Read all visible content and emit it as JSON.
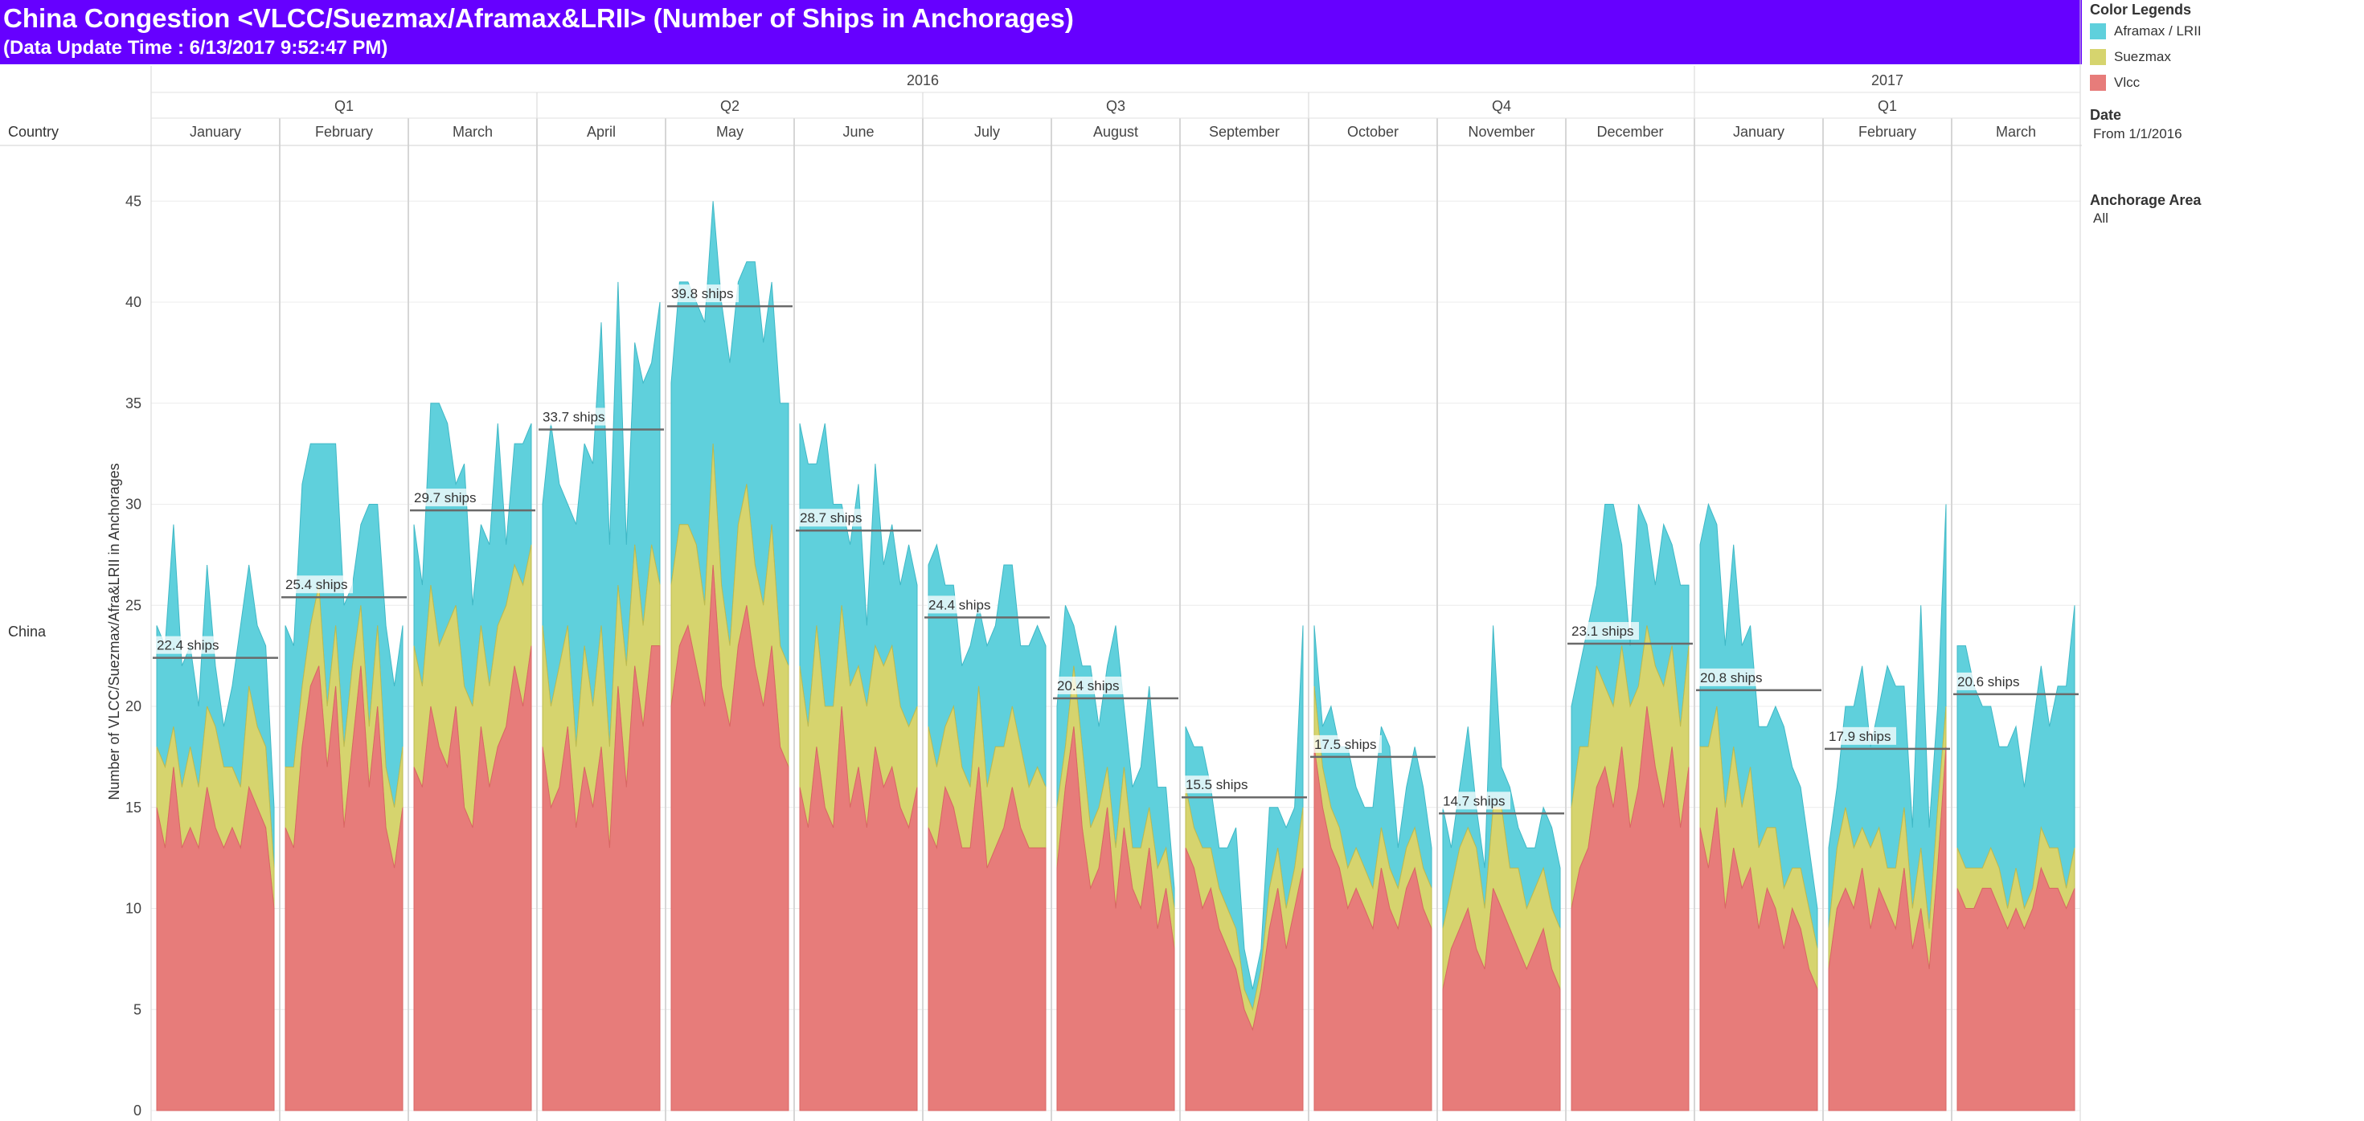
{
  "header": {
    "title": "China Congestion <VLCC/Suezmax/Aframax&LRII> (Number of Ships in Anchorages)",
    "subtitle": "(Data Update Time : 6/13/2017 9:52:47 PM)"
  },
  "legend": {
    "title": "Color Legends",
    "items": [
      {
        "label": "Aframax / LRII",
        "color": "#5fd0dc"
      },
      {
        "label": "Suezmax",
        "color": "#d6d46e"
      },
      {
        "label": "Vlcc",
        "color": "#e77c7a"
      }
    ]
  },
  "filters": {
    "date_label": "Date",
    "date_value": "From 1/1/2016",
    "area_label": "Anchorage Area",
    "area_value": "All"
  },
  "chart_data": {
    "type": "area",
    "stacked": true,
    "title": "China Congestion <VLCC/Suezmax/Aframax&LRII> (Number of Ships in Anchorages)",
    "row_header": "Country",
    "row_label": "China",
    "ylabel": "Number of VLCC/Suezmax/Afra&LRII in Anchorages",
    "ylim": [
      0,
      47
    ],
    "yticks": [
      0,
      5,
      10,
      15,
      20,
      25,
      30,
      35,
      40,
      45
    ],
    "grid": true,
    "years": [
      {
        "label": "2016",
        "span": 12
      },
      {
        "label": "2017",
        "span": 3
      }
    ],
    "quarters": [
      {
        "label": "Q1",
        "span": 3
      },
      {
        "label": "Q2",
        "span": 3
      },
      {
        "label": "Q3",
        "span": 3
      },
      {
        "label": "Q4",
        "span": 3
      },
      {
        "label": "Q1",
        "span": 3
      }
    ],
    "series_order": [
      "Vlcc",
      "Suezmax",
      "Aframax / LRII"
    ],
    "months": [
      {
        "label": "January",
        "avg_label": "22.4 ships",
        "avg": 22.4,
        "vlcc": [
          15,
          13,
          17,
          13,
          14,
          13,
          16,
          14,
          13,
          14,
          13,
          16,
          15,
          14,
          10
        ],
        "suezmax": [
          3,
          4,
          2,
          3,
          4,
          3,
          4,
          5,
          4,
          3,
          3,
          5,
          4,
          4,
          2
        ],
        "aframax": [
          6,
          6,
          10,
          6,
          5,
          4,
          7,
          3,
          2,
          4,
          8,
          6,
          5,
          5,
          3
        ]
      },
      {
        "label": "February",
        "avg_label": "25.4 ships",
        "avg": 25.4,
        "vlcc": [
          14,
          13,
          18,
          21,
          22,
          17,
          21,
          14,
          18,
          22,
          16,
          20,
          14,
          12,
          15
        ],
        "suezmax": [
          3,
          4,
          3,
          3,
          4,
          3,
          3,
          4,
          4,
          3,
          3,
          4,
          3,
          3,
          3
        ],
        "aframax": [
          7,
          6,
          10,
          9,
          7,
          13,
          9,
          7,
          4,
          4,
          11,
          6,
          7,
          6,
          6
        ]
      },
      {
        "label": "March",
        "avg_label": "29.7 ships",
        "avg": 29.7,
        "vlcc": [
          17,
          16,
          20,
          18,
          17,
          20,
          15,
          14,
          19,
          16,
          18,
          19,
          22,
          20,
          23
        ],
        "suezmax": [
          6,
          5,
          6,
          5,
          7,
          5,
          6,
          6,
          5,
          5,
          6,
          6,
          5,
          6,
          5
        ],
        "aframax": [
          6,
          5,
          9,
          12,
          10,
          6,
          11,
          5,
          5,
          7,
          10,
          3,
          6,
          7,
          6
        ]
      },
      {
        "label": "April",
        "avg_label": "33.7 ships",
        "avg": 33.7,
        "vlcc": [
          18,
          15,
          16,
          19,
          14,
          17,
          15,
          18,
          13,
          21,
          16,
          22,
          19,
          23,
          23
        ],
        "suezmax": [
          6,
          5,
          6,
          5,
          4,
          6,
          5,
          6,
          5,
          5,
          6,
          6,
          5,
          5,
          3
        ],
        "aframax": [
          6,
          14,
          9,
          6,
          11,
          10,
          12,
          15,
          10,
          15,
          6,
          10,
          12,
          9,
          14
        ]
      },
      {
        "label": "May",
        "avg_label": "39.8 ships",
        "avg": 39.8,
        "vlcc": [
          20,
          23,
          24,
          22,
          20,
          27,
          21,
          19,
          23,
          25,
          22,
          20,
          23,
          18,
          17
        ],
        "suezmax": [
          6,
          6,
          5,
          6,
          5,
          6,
          5,
          4,
          6,
          6,
          5,
          5,
          6,
          5,
          5
        ],
        "aframax": [
          10,
          12,
          12,
          12,
          14,
          12,
          14,
          14,
          12,
          11,
          15,
          13,
          12,
          12,
          13
        ]
      },
      {
        "label": "June",
        "avg_label": "28.7 ships",
        "avg": 28.7,
        "vlcc": [
          16,
          14,
          18,
          15,
          14,
          20,
          15,
          17,
          14,
          18,
          16,
          17,
          15,
          14,
          16
        ],
        "suezmax": [
          6,
          5,
          6,
          5,
          6,
          5,
          6,
          5,
          6,
          5,
          6,
          6,
          5,
          5,
          4
        ],
        "aframax": [
          12,
          13,
          8,
          14,
          10,
          5,
          7,
          9,
          4,
          9,
          5,
          6,
          6,
          9,
          6
        ]
      },
      {
        "label": "July",
        "avg_label": "24.4 ships",
        "avg": 24.4,
        "vlcc": [
          14,
          13,
          16,
          15,
          13,
          13,
          17,
          12,
          13,
          14,
          16,
          14,
          13,
          13,
          13
        ],
        "suezmax": [
          5,
          4,
          3,
          5,
          4,
          3,
          4,
          4,
          5,
          4,
          4,
          4,
          3,
          4,
          3
        ],
        "aframax": [
          8,
          11,
          7,
          6,
          5,
          7,
          4,
          7,
          6,
          9,
          7,
          5,
          7,
          7,
          7
        ]
      },
      {
        "label": "August",
        "avg_label": "20.4 ships",
        "avg": 20.4,
        "vlcc": [
          12,
          16,
          19,
          14,
          11,
          12,
          15,
          10,
          14,
          11,
          10,
          13,
          9,
          11,
          8
        ],
        "suezmax": [
          3,
          2,
          3,
          4,
          3,
          3,
          2,
          3,
          3,
          2,
          3,
          2,
          3,
          2,
          2
        ],
        "aframax": [
          5,
          7,
          2,
          4,
          8,
          4,
          5,
          11,
          3,
          3,
          4,
          6,
          4,
          3,
          1
        ]
      },
      {
        "label": "September",
        "avg_label": "15.5 ships",
        "avg": 15.5,
        "vlcc": [
          13,
          12,
          10,
          11,
          9,
          8,
          7,
          5,
          4,
          6,
          9,
          11,
          8,
          10,
          12
        ],
        "suezmax": [
          3,
          2,
          3,
          2,
          2,
          2,
          2,
          1,
          1,
          1,
          2,
          2,
          2,
          2,
          3
        ],
        "aframax": [
          3,
          4,
          5,
          3,
          2,
          3,
          5,
          2,
          1,
          1,
          4,
          2,
          4,
          3,
          9
        ]
      },
      {
        "label": "October",
        "avg_label": "17.5 ships",
        "avg": 17.5,
        "vlcc": [
          18,
          15,
          13,
          12,
          10,
          11,
          10,
          9,
          12,
          10,
          9,
          11,
          12,
          10,
          9
        ],
        "suezmax": [
          3,
          2,
          2,
          2,
          2,
          2,
          2,
          2,
          2,
          2,
          2,
          2,
          2,
          2,
          2
        ],
        "aframax": [
          3,
          2,
          5,
          4,
          6,
          3,
          3,
          4,
          5,
          6,
          2,
          3,
          4,
          4,
          2
        ]
      },
      {
        "label": "November",
        "avg_label": "14.7 ships",
        "avg": 14.7,
        "vlcc": [
          6,
          8,
          9,
          10,
          8,
          7,
          11,
          10,
          9,
          8,
          7,
          8,
          9,
          7,
          6
        ],
        "suezmax": [
          3,
          3,
          4,
          4,
          5,
          3,
          4,
          5,
          3,
          4,
          3,
          3,
          3,
          3,
          3
        ],
        "aframax": [
          6,
          2,
          3,
          5,
          2,
          2,
          9,
          2,
          4,
          2,
          3,
          2,
          3,
          4,
          3
        ]
      },
      {
        "label": "December",
        "avg_label": "23.1 ships",
        "avg": 23.1,
        "vlcc": [
          10,
          12,
          13,
          16,
          17,
          15,
          18,
          14,
          16,
          20,
          17,
          15,
          18,
          14,
          17
        ],
        "suezmax": [
          5,
          6,
          5,
          6,
          4,
          5,
          5,
          6,
          5,
          4,
          5,
          6,
          5,
          5,
          6
        ],
        "aframax": [
          5,
          4,
          6,
          4,
          9,
          10,
          5,
          3,
          9,
          5,
          4,
          8,
          5,
          7,
          3
        ]
      },
      {
        "label": "January",
        "avg_label": "20.8 ships",
        "avg": 20.8,
        "vlcc": [
          14,
          12,
          15,
          10,
          13,
          11,
          12,
          9,
          11,
          10,
          8,
          10,
          9,
          7,
          6
        ],
        "suezmax": [
          4,
          6,
          5,
          5,
          5,
          4,
          5,
          4,
          3,
          4,
          3,
          2,
          3,
          3,
          2
        ],
        "aframax": [
          10,
          12,
          9,
          8,
          10,
          8,
          7,
          6,
          5,
          6,
          8,
          5,
          4,
          3,
          2
        ]
      },
      {
        "label": "February",
        "avg_label": "17.9 ships",
        "avg": 17.9,
        "vlcc": [
          7,
          10,
          11,
          10,
          12,
          9,
          11,
          10,
          9,
          12,
          8,
          10,
          7,
          12,
          18
        ],
        "suezmax": [
          2,
          3,
          4,
          3,
          2,
          4,
          3,
          2,
          3,
          3,
          2,
          3,
          2,
          3,
          2
        ],
        "aframax": [
          4,
          3,
          5,
          7,
          8,
          5,
          6,
          10,
          9,
          6,
          4,
          12,
          5,
          5,
          10
        ]
      },
      {
        "label": "March",
        "avg_label": "20.6 ships",
        "avg": 20.6,
        "vlcc": [
          11,
          10,
          10,
          11,
          11,
          10,
          9,
          10,
          9,
          10,
          12,
          11,
          11,
          10,
          11
        ],
        "suezmax": [
          2,
          2,
          2,
          1,
          2,
          2,
          1,
          2,
          1,
          1,
          2,
          2,
          2,
          1,
          2
        ],
        "aframax": [
          10,
          11,
          9,
          8,
          7,
          6,
          8,
          7,
          6,
          8,
          8,
          6,
          8,
          10,
          12
        ]
      }
    ]
  }
}
